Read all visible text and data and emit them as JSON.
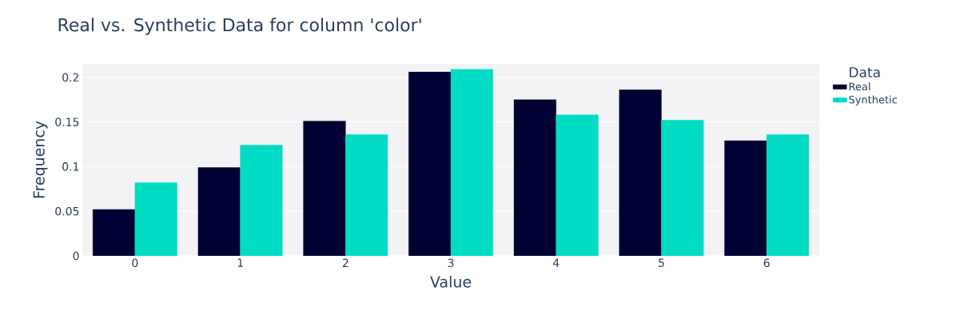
{
  "chart_data": {
    "type": "bar",
    "title": "Real vs. Synthetic Data for column 'color'",
    "xlabel": "Value",
    "ylabel": "Frequency",
    "legend_title": "Data",
    "categories": [
      "0",
      "1",
      "2",
      "3",
      "4",
      "5",
      "6"
    ],
    "series": [
      {
        "name": "Real",
        "color": "#000033",
        "values": [
          0.052,
          0.099,
          0.151,
          0.206,
          0.175,
          0.186,
          0.129
        ]
      },
      {
        "name": "Synthetic",
        "color": "#00dcc4",
        "values": [
          0.082,
          0.124,
          0.136,
          0.209,
          0.158,
          0.152,
          0.136
        ]
      }
    ],
    "ylim": [
      0,
      0.215
    ],
    "yticks": [
      0,
      0.05,
      0.1,
      0.15,
      0.2
    ],
    "grid": "y",
    "legend": "top right"
  }
}
